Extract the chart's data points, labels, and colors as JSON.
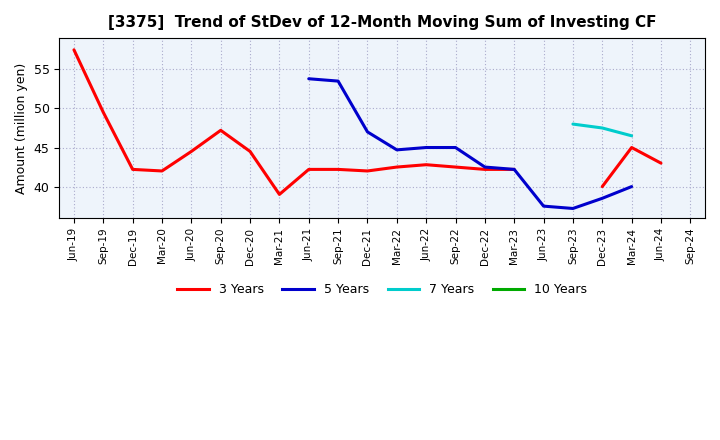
{
  "title": "[3375]  Trend of StDev of 12-Month Moving Sum of Investing CF",
  "ylabel": "Amount (million yen)",
  "background_color": "#ffffff",
  "plot_background_color": "#eef4fb",
  "grid_color": "#aaaacc",
  "x_labels": [
    "Jun-19",
    "Sep-19",
    "Dec-19",
    "Mar-20",
    "Jun-20",
    "Sep-20",
    "Dec-20",
    "Mar-21",
    "Jun-21",
    "Sep-21",
    "Dec-21",
    "Mar-22",
    "Jun-22",
    "Sep-22",
    "Dec-22",
    "Mar-23",
    "Jun-23",
    "Sep-23",
    "Dec-23",
    "Mar-24",
    "Jun-24",
    "Sep-24"
  ],
  "ylim": [
    36,
    59
  ],
  "yticks": [
    40,
    45,
    50,
    55
  ],
  "series": {
    "3 Years": {
      "color": "#ff0000",
      "data": [
        57.5,
        49.5,
        42.2,
        42.0,
        44.5,
        47.2,
        44.5,
        39.0,
        42.2,
        42.2,
        42.0,
        42.5,
        42.8,
        42.5,
        42.2,
        42.2,
        null,
        null,
        40.0,
        45.0,
        43.0,
        null
      ]
    },
    "5 Years": {
      "color": "#0000cc",
      "data": [
        null,
        null,
        null,
        null,
        null,
        null,
        null,
        null,
        53.8,
        53.5,
        47.0,
        44.7,
        45.0,
        45.0,
        42.5,
        42.2,
        37.5,
        37.2,
        38.5,
        40.0,
        null,
        null
      ]
    },
    "7 Years": {
      "color": "#00cccc",
      "data": [
        null,
        null,
        null,
        null,
        null,
        null,
        null,
        null,
        null,
        null,
        null,
        null,
        null,
        null,
        null,
        null,
        null,
        48.0,
        47.5,
        46.5,
        null,
        null
      ]
    },
    "10 Years": {
      "color": "#00aa00",
      "data": [
        null,
        null,
        null,
        null,
        null,
        null,
        null,
        null,
        null,
        null,
        null,
        null,
        null,
        null,
        null,
        null,
        null,
        null,
        null,
        null,
        null,
        null
      ]
    }
  },
  "legend_labels": [
    "3 Years",
    "5 Years",
    "7 Years",
    "10 Years"
  ],
  "legend_colors": [
    "#ff0000",
    "#0000cc",
    "#00cccc",
    "#00aa00"
  ]
}
